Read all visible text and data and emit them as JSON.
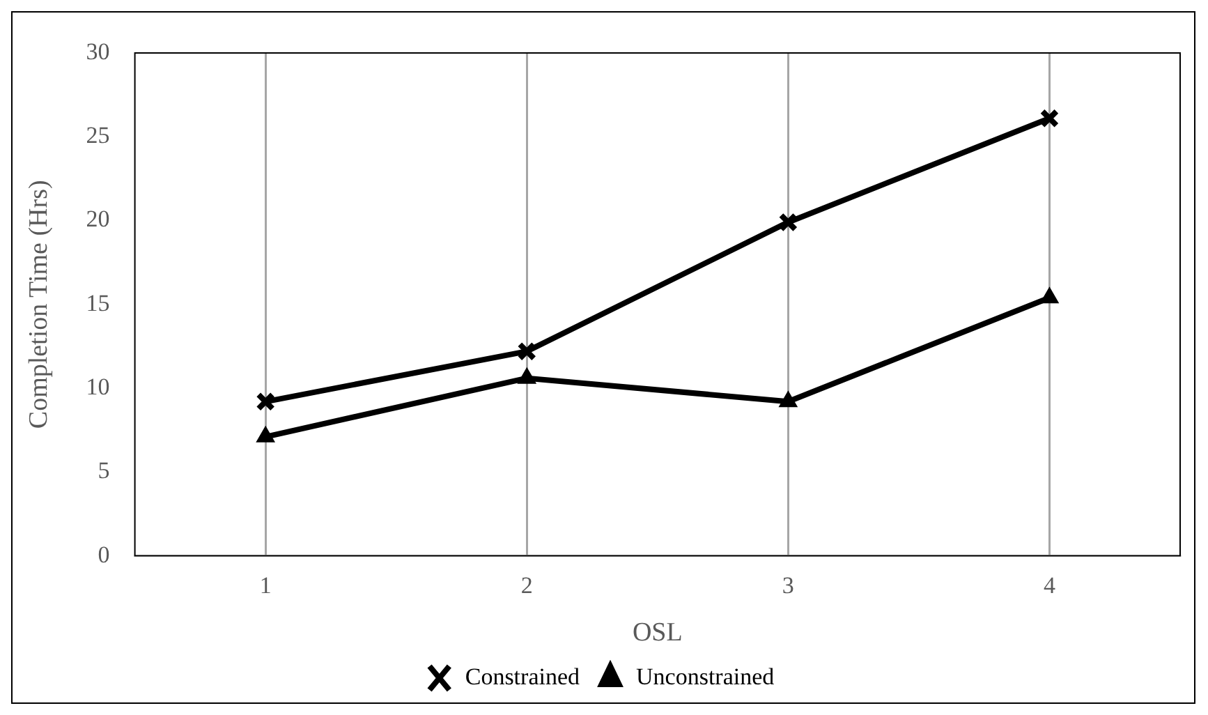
{
  "chart_data": {
    "type": "line",
    "xlabel": "OSL",
    "ylabel": "Completion Time (Hrs)",
    "categories": [
      "1",
      "2",
      "3",
      "4"
    ],
    "series": [
      {
        "name": "Constrained",
        "color": "#000000",
        "marker": "cross",
        "values": [
          9.2,
          12.2,
          19.9,
          26.1
        ]
      },
      {
        "name": "Unconstrained",
        "color": "#000000",
        "marker": "triangle",
        "values": [
          7.1,
          10.6,
          9.2,
          15.4
        ]
      }
    ],
    "ylim": [
      0,
      30
    ],
    "yticks": [
      0,
      5,
      10,
      15,
      20,
      25,
      30
    ],
    "grid": "x",
    "legend": "bottom",
    "line_style": "solid"
  }
}
